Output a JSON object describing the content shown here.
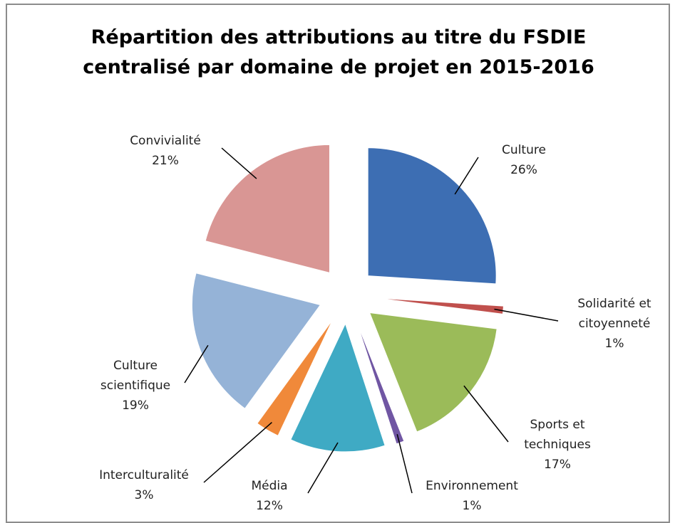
{
  "chart_data": {
    "type": "pie",
    "title": "Répartition des attributions au titre du FSDIE centralisé par domaine de projet en 2015-2016",
    "categories": [
      "Culture",
      "Solidarité et citoyenneté",
      "Sports et techniques",
      "Environnement",
      "Média",
      "Interculturalité",
      "Culture scientifique",
      "Convivialité"
    ],
    "values": [
      26,
      1,
      17,
      1,
      12,
      3,
      19,
      21
    ],
    "value_labels": [
      "26%",
      "1%",
      "17%",
      "1%",
      "12%",
      "3%",
      "19%",
      "21%"
    ],
    "colors": [
      "#3d6eb3",
      "#c0504d",
      "#9bbb59",
      "#7056a3",
      "#3faac4",
      "#f0893a",
      "#95b3d7",
      "#d99694"
    ]
  }
}
